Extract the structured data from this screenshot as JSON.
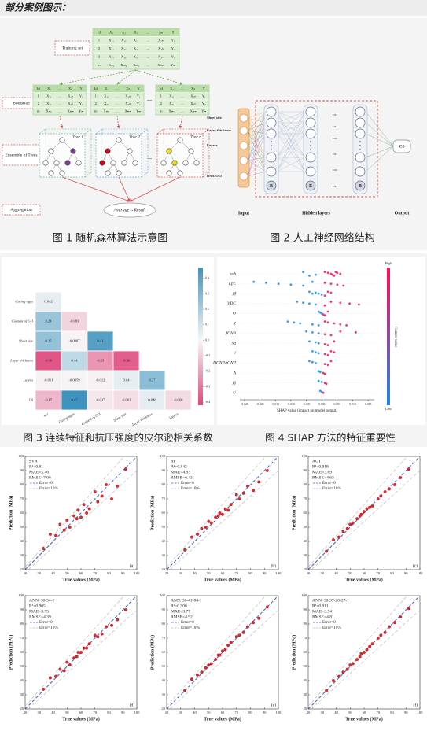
{
  "header": "部分案例图示：",
  "figure1": {
    "caption": "图 1 随机森林算法示意图",
    "labels": {
      "training_set": "Training set",
      "bootstrap": "Bootstrap",
      "ensemble": "Ensemble of Trees",
      "aggregation": "Aggregation",
      "result": "Average→Result"
    },
    "trees": [
      "Tree 1",
      "Tree 2",
      "Tree n"
    ],
    "ellipsis": "...",
    "training_table": [
      [
        "Id",
        "X₁",
        "X₂",
        "X₃",
        "...",
        "Xₙ",
        "Y"
      ],
      [
        "1",
        "X₁₁",
        "X₁₂",
        "X₁₃",
        "...",
        "X₁ₙ",
        "Y₁"
      ],
      [
        "2",
        "X₂₁",
        "X₂₂",
        "X₂₃",
        "...",
        "X₂ₙ",
        "Y₂"
      ],
      [
        "3",
        "X₃₁",
        "X₃₂",
        "X₃₃",
        "...",
        "X₃ₙ",
        "Y₃"
      ],
      [
        "m",
        "Xₘ₁",
        "Xₘ₂",
        "Xₘ₃",
        "...",
        "Xₘₙ",
        "Yₘ"
      ]
    ],
    "bootstrap_table": [
      [
        "Id",
        "X₁",
        "...",
        "Xₙ",
        "Y"
      ],
      [
        "1",
        "X₁₁",
        "...",
        "X₁ₙ",
        "Y₁"
      ],
      [
        "2",
        "X₂₁",
        "...",
        "X₂ₙ",
        "Y₂"
      ],
      [
        "m",
        "Xₘ₁",
        "...",
        "Xₘₙ",
        "Yₘ"
      ]
    ]
  },
  "figure2": {
    "caption": "图 2 人工神经网络结构",
    "inputs": [
      "Sheet size",
      "Layer thickness",
      "Layers",
      "DMGO11"
    ],
    "input_label": "Input",
    "hidden_label": "Hidden layers",
    "output_label": "Output",
    "output_node": "CS",
    "bias": "B",
    "dots": "...."
  },
  "chart_data": [
    {
      "type": "heatmap",
      "caption": "图 3 连续特征和抗压强度的皮尔逊相关系数",
      "rows": [
        "Curing ages",
        "Content of GO",
        "Sheet size",
        "Layer thickness",
        "Layers",
        "CS"
      ],
      "columns": [
        "w/c",
        "Curing ages",
        "Content of GO",
        "Sheet size",
        "Layer thickness",
        "Layers"
      ],
      "values": [
        [
          0.042
        ],
        [
          0.24,
          -0.083
        ],
        [
          0.25,
          -0.0087,
          0.41
        ],
        [
          -0.38,
          0.14,
          -0.23,
          -0.36
        ],
        [
          -0.011,
          -0.0059,
          -0.012,
          0.04,
          0.27
        ],
        [
          -0.15,
          0.47,
          -0.037,
          -0.061,
          0.046,
          -0.068
        ]
      ],
      "clim": [
        -0.42,
        0.47
      ],
      "cticks": [
        0.4,
        0.3,
        0.2,
        0.1,
        {
          "value": 0,
          "label": "0.0"
        },
        -0.1,
        -0.2,
        -0.3,
        -0.4
      ],
      "colors": {
        "negative": "#e0457b",
        "zero": "#f7f7f7",
        "positive": "#3f93bf"
      }
    },
    {
      "type": "beeswarm",
      "caption": "图 4 SHAP 方法的特征重要性",
      "features": [
        "a/h",
        "Lf/L",
        "βf",
        "VDC",
        "O",
        "X",
        "fGNP",
        "Sg",
        "V",
        "DGNP/tGNP",
        "A",
        "βj",
        "U"
      ],
      "values": [
        [
          0.001,
          0.002,
          0.003,
          0.0035,
          0.004,
          0.0045,
          0.005,
          0.006,
          -0.002,
          -0.004,
          -0.006
        ],
        [
          -0.022,
          -0.018,
          -0.014,
          -0.01,
          -0.006,
          -0.003,
          0.001,
          0.003,
          0.005,
          0.007
        ],
        [
          -0.004,
          -0.002,
          -0.001,
          0,
          0.001,
          0.002,
          0.003,
          -0.003
        ],
        [
          -0.008,
          -0.006,
          -0.004,
          -0.002,
          0.001,
          0.003,
          0.006,
          0.009,
          0.012
        ],
        [
          -0.001,
          -0.0005,
          0,
          0.0005,
          0.001,
          0.002
        ],
        [
          -0.011,
          -0.009,
          -0.007,
          -0.003,
          -0.001,
          0.001,
          0.002,
          0.004,
          0.006,
          0.008
        ],
        [
          -0.005,
          -0.003,
          -0.001,
          0.001,
          0.003,
          0.006,
          0.011
        ],
        [
          -0.004,
          -0.002,
          -0.001,
          0.001,
          0.002,
          0.004
        ],
        [
          -0.003,
          -0.002,
          -0.001,
          0.001,
          0.002,
          0.003,
          0.004
        ],
        [
          -0.004,
          -0.003,
          -0.002,
          0.001,
          0.002,
          0.003
        ],
        [
          -0.001,
          -0.0005,
          0.0005,
          0.001
        ],
        [
          -0.001,
          0,
          0.001,
          0.0015
        ],
        [
          -0.0005,
          0,
          0.0005
        ]
      ],
      "xlim": [
        -0.0265,
        0.017
      ],
      "xticks": [
        -0.025,
        {
          "value": -0.02,
          "label": "-0.020"
        },
        -0.015,
        {
          "value": -0.01,
          "label": "-0.010"
        },
        -0.005,
        {
          "value": 0,
          "label": "0.000"
        },
        0.005,
        {
          "value": 0.01,
          "label": "0.010"
        },
        0.015
      ],
      "xlabel": "SHAP value (impact on model output)",
      "colorbar": {
        "high": "High",
        "low": "Low",
        "title": "Feature value"
      },
      "colors": {
        "high": "#ff0d57",
        "low": "#1e88e5"
      }
    },
    {
      "type": "scatter",
      "panel": "(a)",
      "annotations": [
        "SVR",
        "R²=0.81",
        "MAE=5.46",
        "RMSE=7.06"
      ],
      "legend": [
        "Error=0",
        "Error=10%"
      ],
      "x": [
        33,
        38,
        42,
        45,
        48,
        50,
        52,
        55,
        57,
        58,
        60,
        62,
        64,
        66,
        70,
        72,
        75,
        78,
        82,
        86,
        92
      ],
      "y": [
        35,
        45,
        44,
        52,
        48,
        55,
        50,
        58,
        56,
        62,
        57,
        66,
        60,
        63,
        75,
        68,
        72,
        80,
        70,
        79,
        91
      ],
      "xlim": [
        20,
        100
      ],
      "ylim": [
        20,
        100
      ],
      "xticks": [
        20,
        30,
        40,
        50,
        60,
        70,
        80,
        90,
        100
      ],
      "yticks": [
        20,
        30,
        40,
        50,
        60,
        70,
        80,
        90,
        100
      ],
      "xlabel": "True values (MPa)",
      "ylabel": "Prediction (MPa)",
      "color": "#e8262a"
    },
    {
      "type": "scatter",
      "panel": "(b)",
      "annotations": [
        "RF",
        "R²=0.842",
        "MAE=4.93",
        "RMSE=6.43"
      ],
      "legend": [
        "Error=0",
        "Error=10%"
      ],
      "x": [
        33,
        38,
        42,
        45,
        48,
        50,
        52,
        55,
        57,
        58,
        60,
        62,
        64,
        66,
        70,
        72,
        75,
        78,
        82,
        86,
        92
      ],
      "y": [
        34,
        43,
        45,
        49,
        50,
        54,
        53,
        57,
        58,
        60,
        59,
        63,
        62,
        66,
        73,
        70,
        74,
        79,
        76,
        82,
        90
      ],
      "xlim": [
        20,
        100
      ],
      "ylim": [
        20,
        100
      ],
      "xticks": [
        20,
        30,
        40,
        50,
        60,
        70,
        80,
        90,
        100
      ],
      "yticks": [
        20,
        30,
        40,
        50,
        60,
        70,
        80,
        90,
        100
      ],
      "xlabel": "True values (MPa)",
      "ylabel": "Prediction (MPa)",
      "color": "#e8262a"
    },
    {
      "type": "scatter",
      "panel": "(c)",
      "annotations": [
        "AGT",
        "R²=0.918",
        "MAE=3.69",
        "RMSE=4.63"
      ],
      "legend": [
        "Error=0",
        "Error=10%"
      ],
      "x": [
        33,
        38,
        42,
        45,
        48,
        50,
        52,
        55,
        57,
        58,
        60,
        62,
        64,
        66,
        70,
        72,
        75,
        78,
        82,
        86,
        92
      ],
      "y": [
        33,
        41,
        43,
        47,
        49,
        52,
        53,
        56,
        58,
        59,
        61,
        63,
        64,
        65,
        70,
        72,
        75,
        77,
        80,
        85,
        91
      ],
      "xlim": [
        20,
        100
      ],
      "ylim": [
        20,
        100
      ],
      "xticks": [
        20,
        30,
        40,
        50,
        60,
        70,
        80,
        90,
        100
      ],
      "yticks": [
        20,
        30,
        40,
        50,
        60,
        70,
        80,
        90,
        100
      ],
      "xlabel": "True values (MPa)",
      "ylabel": "Prediction (MPa)",
      "color": "#e8262a"
    },
    {
      "type": "scatter",
      "panel": "(d)",
      "annotations": [
        "ANN: 30-54-1",
        "R²=0.905",
        "MAE=3.75",
        "RMSE=4.39"
      ],
      "legend": [
        "Error=0",
        "Error=10%"
      ],
      "x": [
        33,
        38,
        42,
        45,
        48,
        50,
        52,
        55,
        57,
        58,
        60,
        62,
        64,
        66,
        70,
        72,
        75,
        78,
        82,
        86,
        92
      ],
      "y": [
        34,
        42,
        43,
        48,
        47,
        53,
        51,
        56,
        57,
        60,
        60,
        63,
        63,
        66,
        72,
        71,
        73,
        78,
        79,
        83,
        90
      ],
      "xlim": [
        20,
        100
      ],
      "ylim": [
        20,
        100
      ],
      "xticks": [
        20,
        30,
        40,
        50,
        60,
        70,
        80,
        90,
        100
      ],
      "yticks": [
        20,
        30,
        40,
        50,
        60,
        70,
        80,
        90,
        100
      ],
      "xlabel": "True values (MPa)",
      "ylabel": "Prediction (MPa)",
      "color": "#e8262a"
    },
    {
      "type": "scatter",
      "panel": "(e)",
      "annotations": [
        "ANN: 30-41-84-1",
        "R²=0.908",
        "MAE=3.77",
        "RMSE=4.92"
      ],
      "legend": [
        "Error=0",
        "Error=10%"
      ],
      "x": [
        33,
        38,
        42,
        45,
        48,
        50,
        52,
        55,
        57,
        58,
        60,
        62,
        64,
        66,
        70,
        72,
        75,
        78,
        82,
        86,
        92
      ],
      "y": [
        33,
        41,
        44,
        46,
        49,
        51,
        52,
        55,
        58,
        58,
        61,
        62,
        65,
        67,
        71,
        72,
        74,
        78,
        81,
        84,
        92
      ],
      "xlim": [
        20,
        100
      ],
      "ylim": [
        20,
        100
      ],
      "xticks": [
        20,
        30,
        40,
        50,
        60,
        70,
        80,
        90,
        100
      ],
      "yticks": [
        20,
        30,
        40,
        50,
        60,
        70,
        80,
        90,
        100
      ],
      "xlabel": "True values (MPa)",
      "ylabel": "Prediction (MPa)",
      "color": "#e8262a"
    },
    {
      "type": "scatter",
      "panel": "(f)",
      "annotations": [
        "ANN: 30-37-20-27-1",
        "R²=0.911",
        "MAE=3.54",
        "RMSE=4.81"
      ],
      "legend": [
        "Error=0",
        "Error=10%"
      ],
      "x": [
        33,
        38,
        42,
        45,
        48,
        50,
        52,
        55,
        57,
        58,
        60,
        62,
        64,
        66,
        70,
        72,
        75,
        78,
        82,
        86,
        92
      ],
      "y": [
        33,
        40,
        43,
        46,
        48,
        51,
        52,
        55,
        57,
        59,
        60,
        62,
        64,
        66,
        70,
        72,
        74,
        78,
        81,
        85,
        91
      ],
      "xlim": [
        20,
        100
      ],
      "ylim": [
        20,
        100
      ],
      "xticks": [
        20,
        30,
        40,
        50,
        60,
        70,
        80,
        90,
        100
      ],
      "yticks": [
        20,
        30,
        40,
        50,
        60,
        70,
        80,
        90,
        100
      ],
      "xlabel": "True values (MPa)",
      "ylabel": "Prediction (MPa)",
      "color": "#e8262a"
    }
  ]
}
